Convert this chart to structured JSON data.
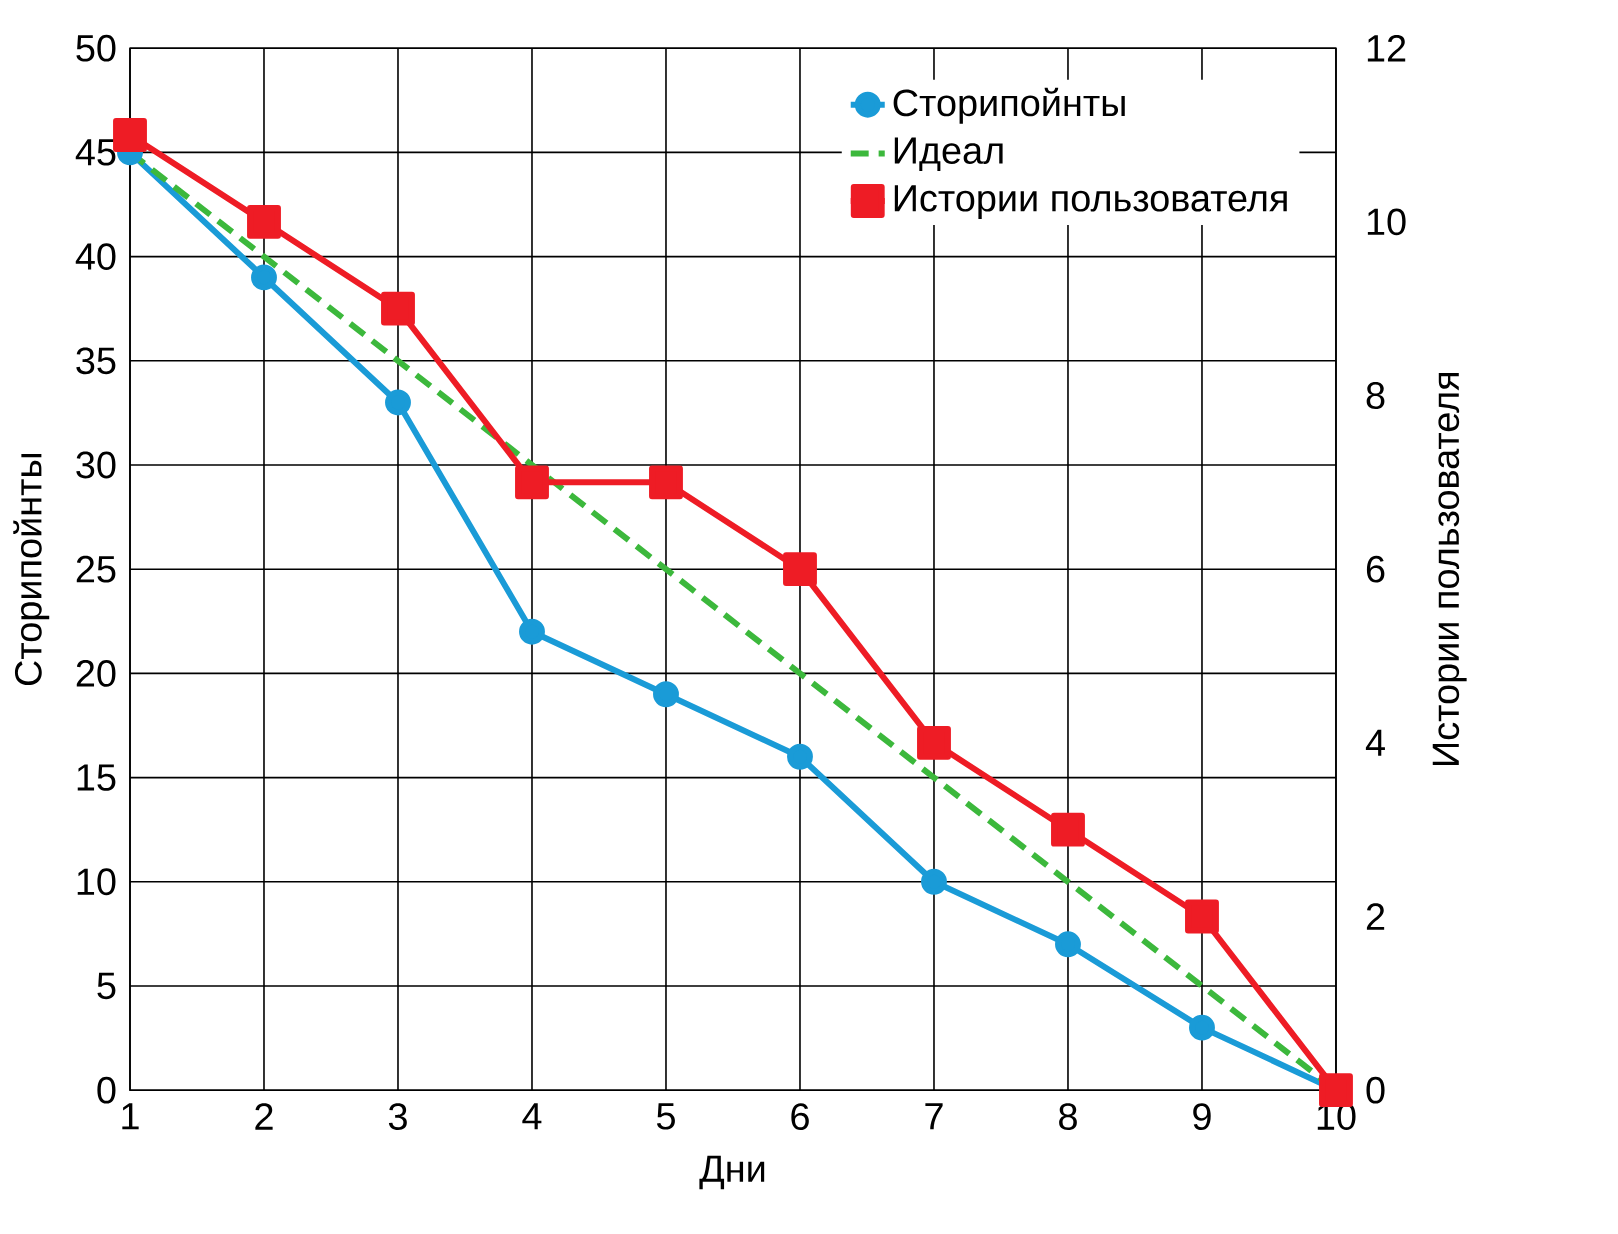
{
  "chart_data": {
    "type": "line",
    "xlabel": "Дни",
    "ylabel": "Сторипойнты",
    "y2label": "Истории пользователя",
    "x": [
      1,
      2,
      3,
      4,
      5,
      6,
      7,
      8,
      9,
      10
    ],
    "xlim": [
      1,
      10
    ],
    "xticks": [
      1,
      2,
      3,
      4,
      5,
      6,
      7,
      8,
      9,
      10
    ],
    "ylim": [
      0,
      50
    ],
    "yticks": [
      0,
      5,
      10,
      15,
      20,
      25,
      30,
      35,
      40,
      45,
      50
    ],
    "y2lim": [
      0,
      12
    ],
    "y2ticks": [
      0,
      2,
      4,
      6,
      8,
      10,
      12
    ],
    "grid": true,
    "legend": "top right",
    "series": [
      {
        "name": "Сторипойнты",
        "color": "#1a9bd7",
        "marker": "circle",
        "line_style": "solid",
        "values": [
          45,
          39,
          33,
          22,
          19,
          16,
          10,
          7,
          3,
          0
        ]
      },
      {
        "name": "Идеал",
        "color": "#3cb83c",
        "marker": "none",
        "line_style": "dashed",
        "values": [
          45,
          40,
          35,
          30,
          25,
          20,
          15,
          10,
          5,
          0
        ]
      },
      {
        "name": "Истории пользователя",
        "color": "#ee1c25",
        "marker": "square",
        "line_style": "solid",
        "axis": "y2",
        "values": [
          11,
          10,
          9,
          7,
          7,
          6,
          4,
          3,
          2,
          0
        ]
      }
    ]
  }
}
